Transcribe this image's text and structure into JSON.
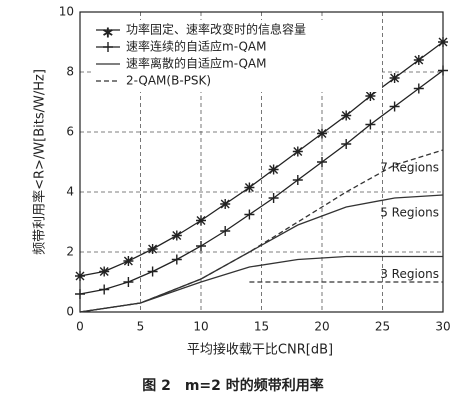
{
  "chart_data": {
    "type": "line",
    "title": "图 2　m=2 时的频带利用率",
    "x_label": "平均接收载干比CNR[dB]",
    "y_label": "频带利用率<R>/W[Bits/W/Hz]",
    "xlim": [
      0,
      30
    ],
    "xticks": [
      0,
      5,
      10,
      15,
      20,
      25,
      30
    ],
    "ylim": [
      0,
      10
    ],
    "yticks": [
      0,
      2,
      4,
      6,
      8,
      10
    ],
    "grid": true,
    "series": [
      {
        "name": "功率固定、速率改变时的信息容量",
        "color": "#222222",
        "marker": "star",
        "dash": false,
        "x": [
          0,
          2,
          4,
          6,
          8,
          10,
          12,
          14,
          16,
          18,
          20,
          22,
          24,
          26,
          28,
          30
        ],
        "values": [
          1.2,
          1.35,
          1.7,
          2.1,
          2.55,
          3.05,
          3.6,
          4.15,
          4.75,
          5.35,
          5.95,
          6.55,
          7.2,
          7.8,
          8.4,
          9.0
        ]
      },
      {
        "name": "速率连续的自适应m-QAM",
        "color": "#222222",
        "marker": "plus",
        "dash": false,
        "x": [
          0,
          2,
          4,
          6,
          8,
          10,
          12,
          14,
          16,
          18,
          20,
          22,
          24,
          26,
          28,
          30
        ],
        "values": [
          0.6,
          0.75,
          1.0,
          1.35,
          1.75,
          2.2,
          2.7,
          3.25,
          3.8,
          4.4,
          5.0,
          5.6,
          6.25,
          6.85,
          7.45,
          8.05
        ]
      },
      {
        "name": "速率离散的自适应m-QAM",
        "color": "#333333",
        "marker": "none",
        "dash": false,
        "curves": [
          {
            "label": "7 Regions",
            "dash": true,
            "x": [
              0,
              5,
              10,
              14,
              18,
              22,
              26,
              30
            ],
            "values": [
              0,
              0.3,
              1.1,
              2.0,
              3.0,
              4.0,
              4.9,
              5.4
            ]
          },
          {
            "label": "5 Regions",
            "dash": false,
            "x": [
              0,
              5,
              10,
              14,
              18,
              22,
              26,
              30
            ],
            "values": [
              0,
              0.3,
              1.1,
              2.0,
              2.9,
              3.5,
              3.8,
              3.9
            ]
          },
          {
            "label": "3 Regions",
            "dash": false,
            "x": [
              0,
              5,
              10,
              14,
              18,
              22,
              26,
              30
            ],
            "values": [
              0,
              0.3,
              1.0,
              1.5,
              1.75,
              1.85,
              1.85,
              1.85
            ]
          }
        ]
      },
      {
        "name": "2-QAM(B-PSK)",
        "color": "#333333",
        "marker": "none",
        "dash": true,
        "x": [
          14,
          30
        ],
        "values": [
          1.0,
          1.0
        ]
      }
    ]
  }
}
